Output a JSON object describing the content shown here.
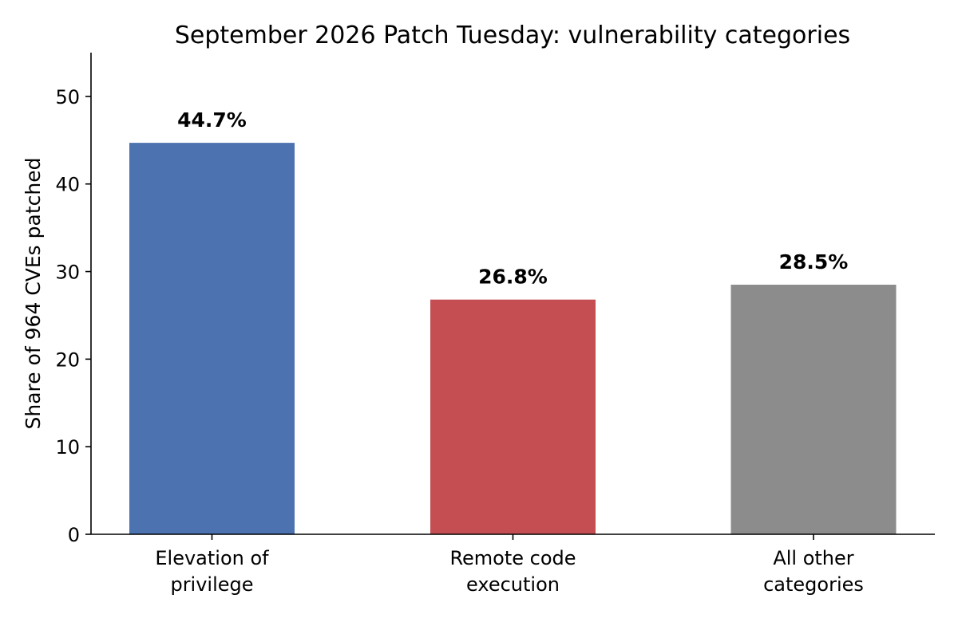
{
  "chart_data": {
    "type": "bar",
    "title": "September 2026 Patch Tuesday: vulnerability categories",
    "xlabel": "",
    "ylabel": "Share of 964 CVEs patched",
    "categories": [
      [
        "Elevation of",
        "privilege"
      ],
      [
        "Remote code",
        "execution"
      ],
      [
        "All other",
        "categories"
      ]
    ],
    "values": [
      44.7,
      26.8,
      28.5
    ],
    "data_labels": [
      "44.7%",
      "26.8%",
      "28.5%"
    ],
    "colors": [
      "#4c72b0",
      "#c44e52",
      "#8c8c8c"
    ],
    "ylim": [
      0,
      55
    ],
    "yticks": [
      0,
      10,
      20,
      30,
      40,
      50
    ],
    "grid": false,
    "legend": "none"
  }
}
